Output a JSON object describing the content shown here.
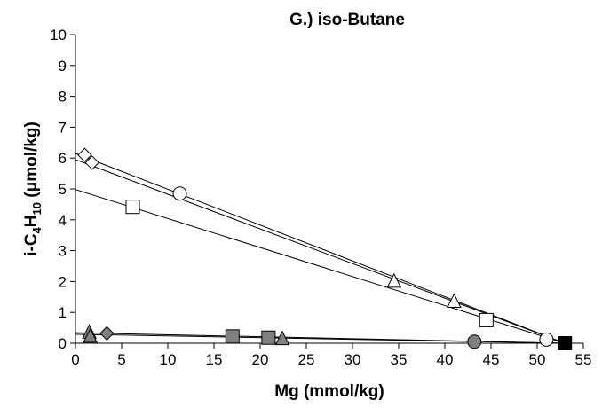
{
  "chart_data": {
    "type": "scatter",
    "title": "G.)  iso-Butane",
    "xlabel": "Mg (mmol/kg)",
    "ylabel": {
      "base": "i-C",
      "sub1": "4",
      "mid": "H",
      "sub2": "10",
      "unit": " (μmol/kg)"
    },
    "xlim": [
      0,
      55
    ],
    "ylim": [
      0,
      10
    ],
    "xticks": [
      "0",
      "5",
      "10",
      "15",
      "20",
      "25",
      "30",
      "35",
      "40",
      "45",
      "50",
      "55"
    ],
    "yticks": [
      "0",
      "1",
      "2",
      "3",
      "4",
      "5",
      "6",
      "7",
      "8",
      "9",
      "10"
    ],
    "grid": false,
    "legend": "none",
    "colors": {
      "open": "#ffffff",
      "filled": "#808080",
      "endpoint": "#000000",
      "stroke": "#000000"
    },
    "series": [
      {
        "marker": "diamond",
        "fill": "open",
        "points": [
          [
            1.0,
            6.1
          ],
          [
            1.8,
            5.85
          ]
        ]
      },
      {
        "marker": "circle",
        "fill": "open",
        "points": [
          [
            11.3,
            4.85
          ],
          [
            51.0,
            0.12
          ]
        ]
      },
      {
        "marker": "square",
        "fill": "open",
        "points": [
          [
            6.2,
            4.42
          ],
          [
            44.5,
            0.75
          ]
        ]
      },
      {
        "marker": "triangle",
        "fill": "open",
        "points": [
          [
            34.5,
            2.0
          ],
          [
            41.0,
            1.35
          ]
        ]
      },
      {
        "marker": "triangle",
        "fill": "filled",
        "points": [
          [
            1.5,
            0.35
          ],
          [
            1.6,
            0.22
          ],
          [
            22.4,
            0.14
          ]
        ]
      },
      {
        "marker": "diamond",
        "fill": "filled",
        "points": [
          [
            3.4,
            0.32
          ]
        ]
      },
      {
        "marker": "square",
        "fill": "filled",
        "points": [
          [
            17.0,
            0.22
          ],
          [
            20.9,
            0.18
          ]
        ]
      },
      {
        "marker": "circle",
        "fill": "filled",
        "points": [
          [
            43.2,
            0.05
          ]
        ]
      },
      {
        "marker": "square",
        "fill": "endpoint",
        "points": [
          [
            53.0,
            0.0
          ]
        ]
      }
    ],
    "trend_lines": [
      {
        "from": [
          0,
          6.15
        ],
        "to": [
          53.0,
          0.0
        ]
      },
      {
        "from": [
          0,
          5.95
        ],
        "to": [
          53.0,
          0.0
        ]
      },
      {
        "from": [
          0,
          4.98
        ],
        "to": [
          53.0,
          0.0
        ]
      },
      {
        "from": [
          0,
          0.34
        ],
        "to": [
          53.0,
          0.0
        ]
      },
      {
        "from": [
          0,
          0.29
        ],
        "to": [
          53.0,
          0.0
        ]
      }
    ]
  }
}
